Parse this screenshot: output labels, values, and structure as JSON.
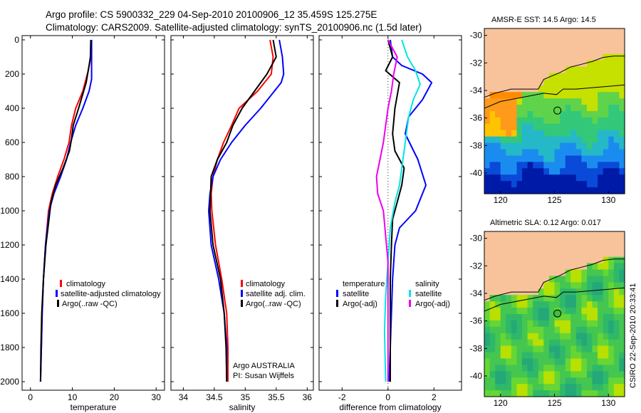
{
  "header": {
    "line1": "Argo profile: CS 5900332_229 04-Sep-2010 20100906_12 35.459S 125.275E",
    "line2": "Climatology: CARS2009. Satellite-adjusted climatology: synTS_20100906.nc (1.5d later)"
  },
  "credit": "CSIRO 22-Sep-2010 20:33:41",
  "chart_data": [
    {
      "type": "line",
      "panel": "temperature",
      "xlabel": "temperature",
      "ylabel": "",
      "xlim": [
        -2,
        32
      ],
      "ylim": [
        2080,
        0
      ],
      "xticks": [
        0,
        10,
        20,
        30
      ],
      "yticks": [
        0,
        200,
        400,
        600,
        800,
        1000,
        1200,
        1400,
        1600,
        1800,
        2000
      ],
      "legend": [
        "climatology",
        "satellite-adjusted climatology",
        "Argo(..raw -QC)"
      ],
      "series": [
        {
          "name": "climatology",
          "color": "#ff0000",
          "x": [
            14.5,
            14.4,
            13.8,
            12.5,
            10.8,
            9.8,
            9.2,
            8.0,
            6.5,
            5.2,
            4.3,
            3.6,
            3.1,
            2.8,
            2.6,
            2.4
          ],
          "y": [
            0,
            100,
            180,
            300,
            400,
            500,
            600,
            700,
            800,
            900,
            1000,
            1200,
            1400,
            1600,
            1800,
            2000
          ]
        },
        {
          "name": "satellite-adjusted climatology",
          "color": "#0000ff",
          "x": [
            14.6,
            14.6,
            14.6,
            14.0,
            12.5,
            10.8,
            9.6,
            8.6,
            7.2,
            5.6,
            4.5,
            3.6,
            3.1,
            2.8,
            2.6,
            2.4
          ],
          "y": [
            0,
            100,
            230,
            300,
            400,
            500,
            600,
            700,
            800,
            900,
            1000,
            1200,
            1400,
            1600,
            1800,
            2000
          ]
        },
        {
          "name": "Argo(..raw -QC)",
          "color": "#000000",
          "x": [
            14.4,
            14.3,
            14.0,
            13.3,
            11.5,
            10.2,
            9.8,
            9.3,
            7.8,
            6.0,
            4.9,
            3.7,
            3.1,
            2.7,
            2.5,
            2.4
          ],
          "y": [
            0,
            100,
            150,
            250,
            400,
            500,
            580,
            650,
            750,
            850,
            950,
            1200,
            1400,
            1600,
            1800,
            2000
          ]
        }
      ]
    },
    {
      "type": "line",
      "panel": "salinity",
      "xlabel": "salinity",
      "xlim": [
        33.8,
        36.1
      ],
      "ylim": [
        2080,
        0
      ],
      "xticks": [
        34,
        34.5,
        35,
        35.5,
        36
      ],
      "legend": [
        "climatology",
        "satellite adj. clim.",
        "Argo(..raw -QC)"
      ],
      "annotation": [
        "Argo AUSTRALIA",
        "PI: Susan Wijffels"
      ],
      "series": [
        {
          "name": "climatology",
          "color": "#ff0000",
          "x": [
            35.4,
            35.45,
            35.42,
            35.2,
            34.9,
            34.78,
            34.65,
            34.55,
            34.48,
            34.45,
            34.46,
            34.52,
            34.62,
            34.7,
            34.72,
            34.72
          ],
          "y": [
            0,
            100,
            200,
            300,
            400,
            500,
            600,
            700,
            800,
            900,
            1000,
            1200,
            1400,
            1600,
            1800,
            2000
          ]
        },
        {
          "name": "satellite adj. clim.",
          "color": "#0000ff",
          "x": [
            35.55,
            35.6,
            35.62,
            35.58,
            35.25,
            35.0,
            34.78,
            34.6,
            34.48,
            34.43,
            34.41,
            34.45,
            34.57,
            34.66,
            34.7,
            34.7
          ],
          "y": [
            0,
            100,
            200,
            250,
            400,
            500,
            600,
            700,
            800,
            900,
            1000,
            1200,
            1400,
            1600,
            1800,
            2000
          ]
        },
        {
          "name": "Argo(..raw -QC)",
          "color": "#000000",
          "x": [
            35.45,
            35.5,
            35.35,
            35.15,
            34.95,
            34.8,
            34.7,
            34.55,
            34.45,
            34.44,
            34.43,
            34.48,
            34.6,
            34.66,
            34.69,
            34.7
          ],
          "y": [
            0,
            100,
            200,
            300,
            400,
            500,
            600,
            700,
            800,
            900,
            1000,
            1200,
            1400,
            1600,
            1800,
            2000
          ]
        }
      ]
    },
    {
      "type": "line",
      "panel": "difference",
      "xlabel": "difference from climatology",
      "xlim": [
        -3,
        3.2
      ],
      "ylim": [
        2080,
        0
      ],
      "xticks": [
        -2,
        0,
        2
      ],
      "legend_temperature": {
        "heading": "temperature",
        "items": [
          "satellite",
          "Argo(-adj)"
        ]
      },
      "legend_salinity": {
        "heading": "salinity",
        "items": [
          "satellite",
          "Argo(-adj)"
        ]
      },
      "series": [
        {
          "name": "satellite",
          "group": "temperature",
          "color": "#0000ff",
          "x": [
            0.1,
            0.2,
            0.6,
            1.5,
            1.9,
            1.5,
            0.9,
            0.75,
            1.3,
            1.65,
            1.2,
            0.5,
            0.3,
            0.2,
            0.15,
            0.1,
            0.05
          ],
          "y": [
            0,
            100,
            150,
            200,
            250,
            350,
            450,
            550,
            700,
            850,
            1000,
            1100,
            1200,
            1400,
            1600,
            1800,
            2000
          ]
        },
        {
          "name": "Argo(-adj)",
          "group": "temperature",
          "color": "#000000",
          "x": [
            0.0,
            0.2,
            -0.1,
            0.5,
            0.3,
            0.2,
            0.3,
            0.7,
            0.6,
            0.4,
            0.2,
            0.15,
            0.1,
            0.1,
            0.1
          ],
          "y": [
            0,
            100,
            180,
            250,
            400,
            550,
            650,
            750,
            850,
            950,
            1050,
            1200,
            1400,
            1700,
            2000
          ]
        },
        {
          "name": "satellite",
          "group": "salinity",
          "color": "#00e5e5",
          "x": [
            0.6,
            0.85,
            1.2,
            1.4,
            1.1,
            0.9,
            0.8,
            0.7,
            0.6,
            0.5,
            0.3,
            0.1,
            0.0,
            -0.1,
            -0.15,
            -0.1
          ],
          "y": [
            0,
            100,
            180,
            260,
            350,
            450,
            550,
            650,
            750,
            850,
            950,
            1100,
            1300,
            1500,
            1700,
            2000
          ]
        },
        {
          "name": "Argo(-adj)",
          "group": "salinity",
          "color": "#ee00ee",
          "x": [
            0.0,
            0.4,
            0.25,
            0.15,
            0.0,
            -0.1,
            -0.2,
            -0.35,
            -0.5,
            -0.45,
            -0.2,
            0.0,
            0.0
          ],
          "y": [
            0,
            100,
            200,
            300,
            400,
            500,
            600,
            700,
            800,
            900,
            1000,
            1300,
            2000
          ]
        }
      ]
    },
    {
      "type": "heatmap",
      "panel": "sst_map",
      "title": "AMSR-E SST: 14.5 Argo: 14.5",
      "xlim": [
        118.5,
        131.5
      ],
      "ylim": [
        -41.5,
        -29.5
      ],
      "xticks": [
        120,
        125,
        130
      ],
      "yticks": [
        -30,
        -32,
        -34,
        -36,
        -38,
        -40
      ],
      "marker": {
        "lon": 125.275,
        "lat": -35.459
      }
    },
    {
      "type": "heatmap",
      "panel": "sla_map",
      "title": "Altimetric SLA: 0.12 Argo: 0.017",
      "xlim": [
        118.5,
        131.5
      ],
      "ylim": [
        -41.5,
        -29.5
      ],
      "xticks": [
        120,
        125,
        130
      ],
      "yticks": [
        -30,
        -32,
        -34,
        -36,
        -38,
        -40
      ],
      "marker": {
        "lon": 125.275,
        "lat": -35.459
      }
    }
  ]
}
